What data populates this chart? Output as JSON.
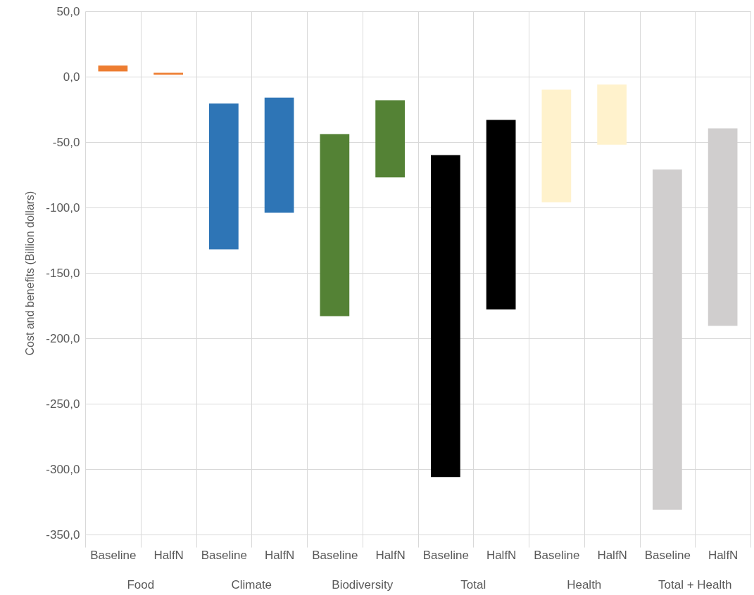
{
  "chart_data": {
    "type": "bar",
    "ylabel": "Cost and benefits (Billion dollars)",
    "categories": [
      "Baseline",
      "HalfN",
      "Baseline",
      "HalfN",
      "Baseline",
      "HalfN",
      "Baseline",
      "HalfN",
      "Baseline",
      "HalfN",
      "Baseline",
      "HalfN"
    ],
    "base": [
      4,
      1.5,
      -132,
      -104,
      -183,
      -77,
      -306,
      -178,
      -96,
      -52,
      -331,
      -190.5
    ],
    "values": [
      4.5,
      1.5,
      111.5,
      88,
      139,
      59,
      246,
      145,
      86,
      46,
      260,
      151
    ],
    "colors": [
      "#ed7d31",
      "#ed7d31",
      "#2e75b6",
      "#2e75b6",
      "#548235",
      "#548235",
      "#000000",
      "#000000",
      "#fff2cc",
      "#fff2cc",
      "#d0cece",
      "#d0cece"
    ],
    "annotations": [
      "Food",
      "Climate",
      "Biodiversity",
      "Total",
      "Health",
      "Total + Health"
    ],
    "ylim": [
      -350,
      50
    ],
    "yticks": [
      {
        "value": -350,
        "label": "-350,0"
      },
      {
        "value": -300,
        "label": "-300,0"
      },
      {
        "value": -250,
        "label": "-250,0"
      },
      {
        "value": -200,
        "label": "-200,0"
      },
      {
        "value": -150,
        "label": "-150,0"
      },
      {
        "value": -100,
        "label": "-100,0"
      },
      {
        "value": -50,
        "label": "-50,0"
      },
      {
        "value": 0,
        "label": "0,0"
      },
      {
        "value": 50,
        "label": "50,0"
      }
    ],
    "grid": true
  }
}
